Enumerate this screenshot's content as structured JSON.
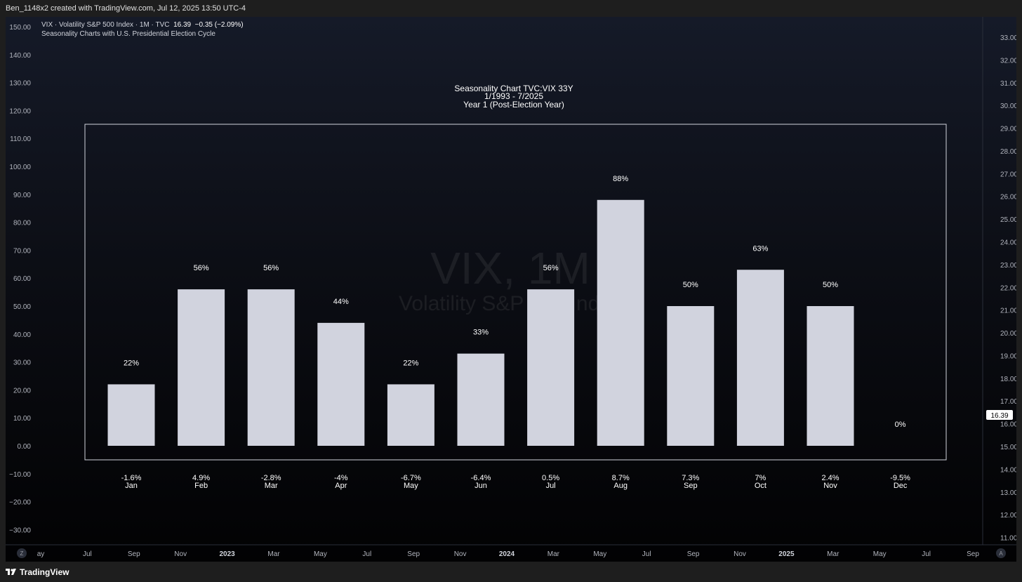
{
  "header": {
    "created_by": "Ben_1148x2 created with TradingView.com, Jul 12, 2025 13:50 UTC-4"
  },
  "legend": {
    "symbol_line": "VIX · Volatility S&P 500 Index · 1M · TVC",
    "price": "16.39",
    "change": "−0.35 (−2.09%)",
    "indicator": "Seasonality Charts with U.S. Presidential Election Cycle"
  },
  "watermark": {
    "symbol": "VIX, 1M",
    "name": "Volatility S&P 500 Index"
  },
  "price_scale": {
    "ticks": [
      "33.00",
      "32.00",
      "31.00",
      "30.00",
      "29.00",
      "28.00",
      "27.00",
      "26.00",
      "25.00",
      "24.00",
      "23.00",
      "22.00",
      "21.00",
      "20.00",
      "19.00",
      "18.00",
      "17.00",
      "16.00",
      "15.00",
      "14.00",
      "13.00",
      "12.00",
      "11.00"
    ],
    "current_price": "16.39"
  },
  "time_axis": {
    "labels": [
      "ay",
      "Jul",
      "Sep",
      "Nov",
      "2023",
      "Mar",
      "May",
      "Jul",
      "Sep",
      "Nov",
      "2024",
      "Mar",
      "May",
      "Jul",
      "Sep",
      "Nov",
      "2025",
      "Mar",
      "May",
      "Jul",
      "Sep"
    ],
    "bold_labels": [
      "2023",
      "2024",
      "2025"
    ],
    "left_button": "Z",
    "right_button": "A"
  },
  "footer": {
    "brand": "TradingView"
  },
  "chart_data": {
    "type": "bar",
    "title": "Seasonality Chart TVC:VIX 33Y",
    "subtitle": [
      "1/1993 - 7/2025",
      "Year 1 (Post-Election Year)"
    ],
    "ylim": [
      -35,
      150
    ],
    "y_ticks": [
      "150.00",
      "140.00",
      "130.00",
      "120.00",
      "110.00",
      "100.00",
      "90.00",
      "80.00",
      "70.00",
      "60.00",
      "50.00",
      "40.00",
      "30.00",
      "20.00",
      "10.00",
      "0.00",
      "−10.00",
      "−20.00",
      "−30.00"
    ],
    "categories": [
      "Jan",
      "Feb",
      "Mar",
      "Apr",
      "May",
      "Jun",
      "Jul",
      "Aug",
      "Sep",
      "Oct",
      "Nov",
      "Dec"
    ],
    "values": [
      22,
      56,
      56,
      44,
      22,
      33,
      56,
      88,
      50,
      63,
      50,
      0
    ],
    "value_labels": [
      "22%",
      "56%",
      "56%",
      "44%",
      "22%",
      "33%",
      "56%",
      "88%",
      "50%",
      "63%",
      "50%",
      "0%"
    ],
    "avg_returns": [
      "-1.6%",
      "4.9%",
      "-2.8%",
      "-4%",
      "-6.7%",
      "-6.4%",
      "0.5%",
      "8.7%",
      "7.3%",
      "7%",
      "2.4%",
      "-9.5%"
    ],
    "colors": {
      "bar": "#d1d3de",
      "text": "#ffffff",
      "axis_text": "#b2b5be",
      "box": "#d1d4dc"
    }
  }
}
